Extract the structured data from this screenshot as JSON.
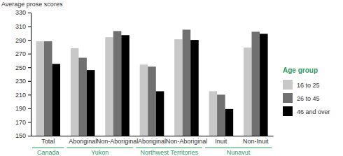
{
  "chart_data": {
    "type": "bar",
    "y_label": "Average prose scores",
    "categories": [
      "Total",
      "Aboriginal",
      "Non-Aboriginal",
      "Aboriginal",
      "Non-Aboriginal",
      "Inuit",
      "Non-Inuit"
    ],
    "groups": [
      {
        "name": "Canada",
        "span": 1
      },
      {
        "name": "Yukon",
        "span": 2
      },
      {
        "name": "Northwest Territories",
        "span": 2
      },
      {
        "name": "Nunavut",
        "span": 2
      }
    ],
    "series": [
      {
        "name": "16 to 25",
        "color": "#c8c8c8",
        "values": [
          288,
          278,
          294,
          254,
          291,
          215,
          279
        ]
      },
      {
        "name": "26 to 45",
        "color": "#707070",
        "values": [
          288,
          264,
          303,
          251,
          305,
          210,
          302
        ]
      },
      {
        "name": "46 and over",
        "color": "#000000",
        "values": [
          255,
          246,
          297,
          215,
          290,
          189,
          299
        ]
      }
    ],
    "legend_title": "Age group",
    "legend": "right",
    "ylim": [
      150,
      330
    ],
    "yticks": [
      150,
      170,
      190,
      210,
      230,
      250,
      270,
      290,
      310,
      330
    ],
    "grid": false
  }
}
